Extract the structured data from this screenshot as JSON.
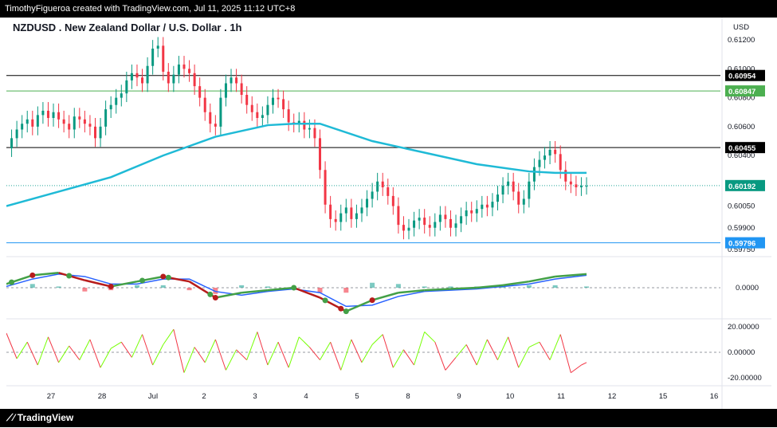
{
  "header": {
    "text": "TimothyFigueroa created with TradingView.com, Jul 11, 2025 11:12 UTC+8"
  },
  "footer": {
    "brand": "TradingView"
  },
  "chart_data": {
    "type": "line",
    "title": "NZDUSD . New Zealand Dollar / U.S. Dollar . 1h",
    "currency": "USD",
    "x_tick_labels": [
      "27",
      "28",
      "Jul",
      "2",
      "3",
      "4",
      "5",
      "8",
      "9",
      "10",
      "11",
      "12",
      "15",
      "16"
    ],
    "price_axis": {
      "ticks": [
        "0.61200",
        "0.61000",
        "0.60800",
        "0.60600",
        "0.60400",
        "0.60050",
        "0.59900",
        "0.59750"
      ],
      "ylim": [
        0.597,
        0.613
      ]
    },
    "price_series": {
      "name": "",
      "x": [
        0,
        2,
        4,
        6,
        8,
        10,
        12,
        14,
        16,
        18,
        20,
        22,
        24,
        26,
        28,
        30,
        32,
        34,
        36,
        38,
        40,
        42,
        44,
        46,
        48,
        50,
        52,
        54,
        56,
        58,
        60,
        62,
        64,
        66,
        68,
        70,
        72,
        74,
        76,
        78,
        80,
        82,
        84,
        86,
        88,
        90,
        92,
        94,
        96,
        98,
        100,
        102,
        104,
        106,
        108,
        110,
        112,
        114,
        116,
        118,
        120,
        122,
        124,
        126,
        128,
        130,
        132,
        134,
        136,
        138,
        140,
        142,
        144,
        146,
        148,
        150,
        152,
        154,
        156,
        158,
        160,
        162,
        164,
        166,
        168,
        170,
        172,
        174,
        176,
        178,
        180,
        182,
        184,
        186,
        188,
        190,
        192,
        194,
        196,
        198,
        200,
        202,
        204,
        206,
        208,
        210,
        212,
        214,
        216,
        218,
        220,
        222
      ],
      "values": [
        0.6045,
        0.6052,
        0.6058,
        0.6062,
        0.6065,
        0.606,
        0.6068,
        0.6071,
        0.6066,
        0.607,
        0.6065,
        0.6062,
        0.6058,
        0.6067,
        0.6065,
        0.6062,
        0.606,
        0.6052,
        0.606,
        0.6072,
        0.6075,
        0.608,
        0.6083,
        0.6092,
        0.6097,
        0.6094,
        0.609,
        0.6102,
        0.6114,
        0.6116,
        0.6098,
        0.609,
        0.6096,
        0.6103,
        0.61,
        0.6097,
        0.6088,
        0.608,
        0.607,
        0.6062,
        0.606,
        0.608,
        0.609,
        0.6094,
        0.609,
        0.6082,
        0.6075,
        0.607,
        0.6066,
        0.6068,
        0.6075,
        0.608,
        0.6079,
        0.6072,
        0.6063,
        0.6062,
        0.6064,
        0.6058,
        0.6059,
        0.6052,
        0.603,
        0.6006,
        0.5996,
        0.5994,
        0.6,
        0.6004,
        0.5996,
        0.6,
        0.6004,
        0.601,
        0.6015,
        0.6022,
        0.6018,
        0.6012,
        0.6005,
        0.5992,
        0.5988,
        0.599,
        0.5995,
        0.5997,
        0.5992,
        0.599,
        0.5994,
        0.5999,
        0.5996,
        0.599,
        0.5993,
        0.5998,
        0.6002,
        0.6,
        0.6003,
        0.6006,
        0.6004,
        0.6008,
        0.6013,
        0.6019,
        0.6022,
        0.6015,
        0.6006,
        0.601,
        0.6022,
        0.6032,
        0.6037,
        0.604,
        0.6044,
        0.6041,
        0.603,
        0.6022,
        0.602,
        0.6018,
        0.6019,
        0.6019
      ]
    },
    "moving_average": {
      "name": "",
      "color": "#1fbad6",
      "x": [
        0,
        20,
        40,
        60,
        80,
        100,
        110,
        120,
        140,
        160,
        180,
        200,
        210,
        222
      ],
      "values": [
        0.6005,
        0.6015,
        0.6025,
        0.604,
        0.6053,
        0.6061,
        0.6062,
        0.6062,
        0.605,
        0.6042,
        0.6034,
        0.6029,
        0.6028,
        0.6028
      ]
    },
    "horizontal_lines": [
      {
        "value": "0.60954",
        "color": "#000000",
        "badge_bg": "#000000"
      },
      {
        "value": "0.60847",
        "color": "#4caf50",
        "badge_bg": "#4caf50"
      },
      {
        "value": "0.60455",
        "color": "#000000",
        "badge_bg": "#000000"
      },
      {
        "value": "0.60192",
        "color": "#26a69a",
        "badge_bg": "#089981"
      },
      {
        "value": "0.59796",
        "color": "#2196f3",
        "badge_bg": "#2196f3"
      }
    ],
    "macd": {
      "zero_label": "0.0000",
      "ylim": [
        -0.0025,
        0.0025
      ],
      "x": [
        0,
        10,
        20,
        30,
        40,
        50,
        60,
        70,
        80,
        90,
        100,
        110,
        120,
        130,
        140,
        150,
        160,
        170,
        180,
        190,
        200,
        210,
        222
      ],
      "macd": [
        0.0003,
        0.001,
        0.0012,
        0.0006,
        0.0001,
        0.0005,
        0.0009,
        0.0005,
        -0.0008,
        -0.0004,
        -0.0002,
        0.0,
        -0.0008,
        -0.0019,
        -0.001,
        -0.0004,
        -0.0002,
        -0.0001,
        0.0,
        0.0002,
        0.0005,
        0.0009,
        0.0011
      ],
      "signal": [
        0.0001,
        0.0007,
        0.0011,
        0.0009,
        0.0003,
        0.0003,
        0.0007,
        0.0007,
        -0.0003,
        -0.0006,
        -0.0003,
        -0.0001,
        -0.0004,
        -0.0015,
        -0.0014,
        -0.0007,
        -0.0003,
        -0.0002,
        -0.0001,
        0.0001,
        0.0003,
        0.0007,
        0.001
      ],
      "cross_points_green": [
        2,
        24,
        52,
        62,
        78,
        110,
        122,
        130
      ],
      "cross_points_red": [
        10,
        40,
        60,
        80,
        128,
        140
      ]
    },
    "oscillator": {
      "ticks": [
        "20.00000",
        "0.00000",
        "-20.00000"
      ],
      "ylim": [
        -25,
        25
      ],
      "x": [
        0,
        4,
        8,
        12,
        16,
        20,
        24,
        28,
        32,
        36,
        40,
        44,
        48,
        52,
        56,
        60,
        64,
        68,
        72,
        76,
        80,
        84,
        88,
        92,
        96,
        100,
        104,
        108,
        112,
        116,
        120,
        124,
        128,
        132,
        136,
        140,
        144,
        148,
        152,
        156,
        160,
        164,
        168,
        172,
        176,
        180,
        184,
        188,
        192,
        196,
        200,
        204,
        208,
        212,
        216,
        220,
        222
      ],
      "values": [
        15,
        -5,
        8,
        -10,
        12,
        -8,
        5,
        -6,
        10,
        -12,
        3,
        8,
        -4,
        14,
        -10,
        6,
        18,
        -16,
        4,
        -8,
        10,
        -14,
        2,
        -6,
        16,
        -10,
        8,
        -12,
        12,
        4,
        -6,
        8,
        -14,
        10,
        -8,
        6,
        14,
        -12,
        2,
        -10,
        16,
        8,
        -14,
        -4,
        6,
        -10,
        10,
        -6,
        12,
        -12,
        4,
        8,
        -6,
        14,
        -16,
        -10,
        -8
      ]
    }
  }
}
